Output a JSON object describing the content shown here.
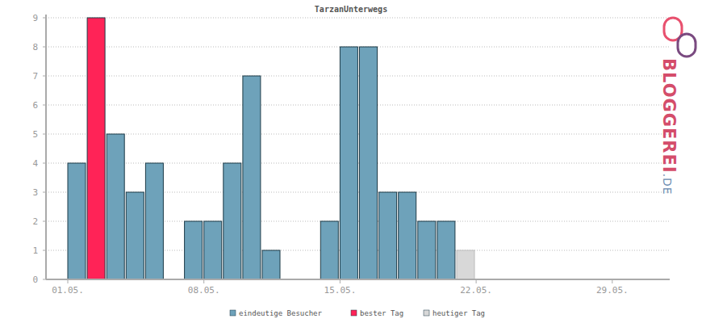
{
  "chart_data": {
    "type": "bar",
    "title": "TarzanUnterwegs",
    "categories": [
      "01.05.",
      null,
      null,
      null,
      null,
      null,
      null,
      "08.05.",
      null,
      null,
      null,
      null,
      null,
      null,
      "15.05.",
      null,
      null,
      null,
      null,
      null,
      null,
      "22.05.",
      null,
      null,
      null,
      null,
      null,
      null,
      "29.05.",
      null,
      null
    ],
    "series": [
      {
        "name": "eindeutige Besucher",
        "color": "#6ea2ba",
        "values": [
          4,
          9,
          5,
          3,
          4,
          0,
          2,
          2,
          4,
          7,
          1,
          0,
          0,
          2,
          8,
          8,
          3,
          3,
          2,
          2,
          1,
          0,
          0,
          0,
          0,
          0,
          0,
          0,
          0,
          0,
          0
        ]
      }
    ],
    "colors": [
      "#6ea2ba",
      "#ff2357",
      "#6ea2ba",
      "#6ea2ba",
      "#6ea2ba",
      "#6ea2ba",
      "#6ea2ba",
      "#6ea2ba",
      "#6ea2ba",
      "#6ea2ba",
      "#6ea2ba",
      "#6ea2ba",
      "#6ea2ba",
      "#6ea2ba",
      "#6ea2ba",
      "#6ea2ba",
      "#6ea2ba",
      "#6ea2ba",
      "#6ea2ba",
      "#6ea2ba",
      "#d8d8d8",
      "#6ea2ba",
      "#6ea2ba",
      "#6ea2ba",
      "#6ea2ba",
      "#6ea2ba",
      "#6ea2ba",
      "#6ea2ba",
      "#6ea2ba",
      "#6ea2ba",
      "#6ea2ba"
    ],
    "legend_entries": [
      {
        "label": "eindeutige Besucher",
        "color": "#6ea2ba"
      },
      {
        "label": "bester Tag",
        "color": "#ff2357"
      },
      {
        "label": "heutiger Tag",
        "color": "#d8d8d8"
      }
    ],
    "legend": "bottom",
    "watermark": [
      "BLOGGEREI",
      ".DE"
    ],
    "ylim": [
      0,
      9
    ],
    "yticks": [
      0,
      1,
      2,
      3,
      4,
      5,
      6,
      7,
      8,
      9
    ],
    "grid": true
  }
}
